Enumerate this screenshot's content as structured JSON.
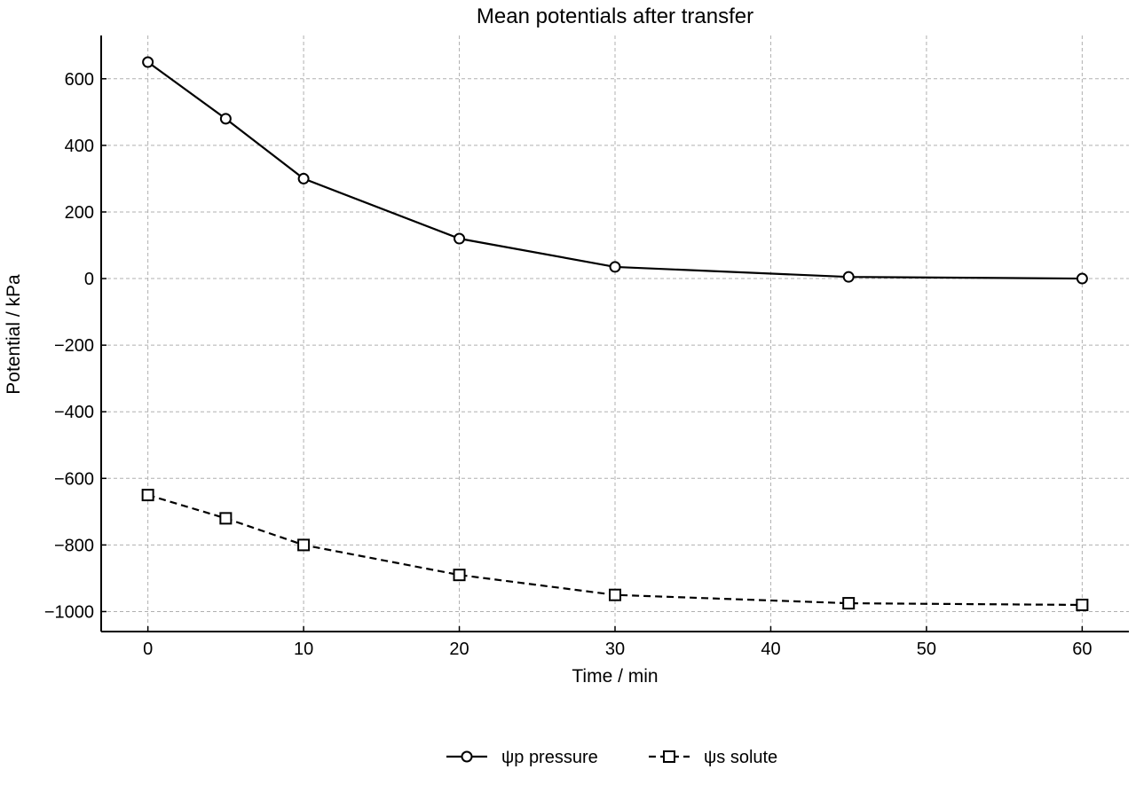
{
  "chart_data": {
    "type": "line",
    "title": "Mean potentials after transfer",
    "xlabel": "Time / min",
    "ylabel": "Potential / kPa",
    "xlim": [
      -3,
      63
    ],
    "ylim": [
      -1060,
      730
    ],
    "xticks": [
      0,
      10,
      20,
      30,
      40,
      50,
      60
    ],
    "yticks": [
      600,
      400,
      200,
      0,
      -200,
      -400,
      -600,
      -800,
      -1000
    ],
    "grid": true,
    "legend_position": "bottom-center",
    "x": [
      0,
      5,
      10,
      20,
      30,
      45,
      60
    ],
    "series": [
      {
        "name": "ψp pressure",
        "values": [
          650,
          480,
          300,
          120,
          35,
          5,
          0
        ],
        "marker": "circle",
        "line_style": "solid",
        "color": "#000000"
      },
      {
        "name": "ψs solute",
        "values": [
          -650,
          -720,
          -800,
          -890,
          -950,
          -975,
          -980
        ],
        "marker": "square",
        "line_style": "dashed",
        "color": "#000000"
      }
    ]
  }
}
